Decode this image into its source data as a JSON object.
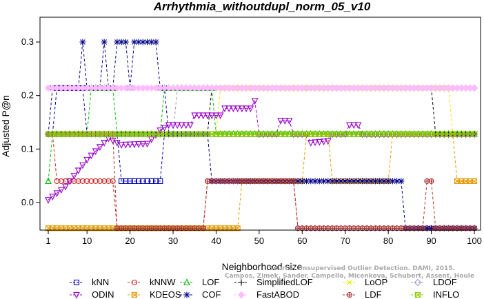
{
  "chart_data": {
    "type": "line",
    "title": "Arrhythmia_withoutdupl_norm_05_v10",
    "xlabel": "Neighborhood size",
    "ylabel": "Adjusted P@n",
    "xlim": [
      1,
      100
    ],
    "ylim": [
      -0.05,
      0.33
    ],
    "xticks": [
      1,
      10,
      20,
      30,
      40,
      50,
      60,
      70,
      80,
      90,
      100
    ],
    "yticks": [
      0.0,
      0.1,
      0.2,
      0.3
    ],
    "grid": false,
    "legend_position": "bottom",
    "watermark": [
      "Source: Unsupervised Outlier Detection. DAMI, 2015.",
      "Campos, Zimek, Sander, Campello, Micenkova, Schubert, Assent, Houle"
    ],
    "series": [
      {
        "name": "kNN",
        "color": "#0000bb",
        "marker": "square",
        "segments": [
          [
            1,
            0.128
          ],
          [
            2,
            0.128
          ],
          [
            3,
            0.214
          ],
          [
            9,
            0.214
          ],
          [
            10,
            0.128
          ],
          [
            17,
            0.128
          ],
          [
            18,
            0.04
          ],
          [
            27,
            0.04
          ],
          [
            28,
            0.128
          ],
          [
            100,
            0.128
          ]
        ]
      },
      {
        "name": "kNNW",
        "color": "#cc2222",
        "marker": "circle",
        "segments": [
          [
            1,
            0.128
          ],
          [
            2,
            0.128
          ],
          [
            3,
            0.04
          ],
          [
            16,
            0.04
          ],
          [
            17,
            -0.048
          ],
          [
            37,
            -0.048
          ],
          [
            38,
            0.04
          ],
          [
            58,
            0.04
          ],
          [
            59,
            -0.048
          ],
          [
            100,
            -0.048
          ]
        ]
      },
      {
        "name": "LOF",
        "color": "#00bb00",
        "marker": "triangle-up",
        "segments": [
          [
            1,
            0.04
          ],
          [
            2,
            0.128
          ],
          [
            10,
            0.128
          ],
          [
            11,
            0.214
          ],
          [
            16,
            0.214
          ],
          [
            17,
            0.128
          ],
          [
            27,
            0.128
          ],
          [
            28,
            0.214
          ],
          [
            39,
            0.214
          ],
          [
            40,
            0.128
          ],
          [
            100,
            0.128
          ]
        ]
      },
      {
        "name": "SimplifiedLOF",
        "color": "#000000",
        "marker": "plus",
        "segments": [
          [
            1,
            0.128
          ],
          [
            38,
            0.128
          ],
          [
            39,
            0.214
          ],
          [
            90,
            0.214
          ],
          [
            91,
            0.128
          ],
          [
            100,
            0.128
          ]
        ]
      },
      {
        "name": "LoOP",
        "color": "#e8e800",
        "marker": "cross",
        "segments": [
          [
            1,
            0.128
          ],
          [
            40,
            0.128
          ],
          [
            41,
            0.214
          ],
          [
            94,
            0.214
          ],
          [
            95,
            0.128
          ],
          [
            100,
            0.128
          ]
        ]
      },
      {
        "name": "LDOF",
        "color": "#9999cc",
        "marker": "diamond",
        "segments": [
          [
            1,
            0.128
          ],
          [
            30,
            0.128
          ],
          [
            31,
            0.214
          ],
          [
            100,
            0.214
          ]
        ]
      },
      {
        "name": "ODIN",
        "color": "#9900cc",
        "marker": "triangle-down",
        "segments": [
          [
            1,
            0.005
          ],
          [
            5,
            0.03
          ],
          [
            10,
            0.08
          ],
          [
            15,
            0.12
          ],
          [
            18,
            0.108
          ],
          [
            24,
            0.11
          ],
          [
            27,
            0.135
          ],
          [
            29,
            0.145
          ],
          [
            34,
            0.145
          ],
          [
            35,
            0.163
          ],
          [
            41,
            0.163
          ],
          [
            42,
            0.176
          ],
          [
            48,
            0.176
          ],
          [
            49,
            0.19
          ],
          [
            50,
            0.128
          ],
          [
            54,
            0.128
          ],
          [
            55,
            0.153
          ],
          [
            57,
            0.153
          ],
          [
            58,
            0.128
          ],
          [
            61,
            0.128
          ],
          [
            62,
            0.112
          ],
          [
            66,
            0.115
          ],
          [
            67,
            0.128
          ],
          [
            70,
            0.128
          ],
          [
            71,
            0.145
          ],
          [
            73,
            0.145
          ],
          [
            74,
            0.128
          ],
          [
            100,
            0.128
          ]
        ]
      },
      {
        "name": "KDEOS",
        "color": "#e69a00",
        "marker": "square-x",
        "segments": [
          [
            1,
            -0.048
          ],
          [
            45,
            -0.048
          ],
          [
            46,
            0.04
          ],
          [
            60,
            0.04
          ],
          [
            61,
            0.128
          ],
          [
            66,
            0.128
          ],
          [
            67,
            0.04
          ],
          [
            80,
            0.04
          ],
          [
            81,
            0.128
          ],
          [
            95,
            0.128
          ],
          [
            96,
            0.04
          ],
          [
            100,
            0.04
          ]
        ]
      },
      {
        "name": "COF",
        "color": "#000088",
        "marker": "star",
        "segments": [
          [
            1,
            0.128
          ],
          [
            2,
            0.214
          ],
          [
            8,
            0.214
          ],
          [
            9,
            0.3
          ],
          [
            10,
            0.214
          ],
          [
            13,
            0.214
          ],
          [
            14,
            0.3
          ],
          [
            15,
            0.214
          ],
          [
            16,
            0.214
          ],
          [
            17,
            0.3
          ],
          [
            19,
            0.3
          ],
          [
            20,
            0.214
          ],
          [
            21,
            0.3
          ],
          [
            26,
            0.3
          ],
          [
            27,
            0.214
          ],
          [
            28,
            0.214
          ],
          [
            29,
            0.128
          ],
          [
            38,
            0.128
          ],
          [
            39,
            0.04
          ],
          [
            83,
            0.04
          ],
          [
            84,
            -0.048
          ],
          [
            100,
            -0.048
          ]
        ]
      },
      {
        "name": "FastABOD",
        "color": "#ffbbff",
        "marker": "diamond-filled",
        "segments": [
          [
            1,
            0.214
          ],
          [
            100,
            0.214
          ]
        ]
      },
      {
        "name": "LDF",
        "color": "#aa3333",
        "marker": "circle-plus",
        "segments": [
          [
            1,
            0.128
          ],
          [
            16,
            0.128
          ],
          [
            17,
            -0.048
          ],
          [
            37,
            -0.048
          ],
          [
            38,
            0.04
          ],
          [
            58,
            0.04
          ],
          [
            59,
            -0.048
          ],
          [
            88,
            -0.048
          ],
          [
            89,
            0.04
          ],
          [
            90,
            0.04
          ],
          [
            91,
            -0.048
          ],
          [
            100,
            -0.048
          ]
        ]
      },
      {
        "name": "INFLO",
        "color": "#88cc00",
        "marker": "square-x",
        "segments": [
          [
            1,
            0.128
          ],
          [
            100,
            0.128
          ]
        ]
      }
    ]
  }
}
